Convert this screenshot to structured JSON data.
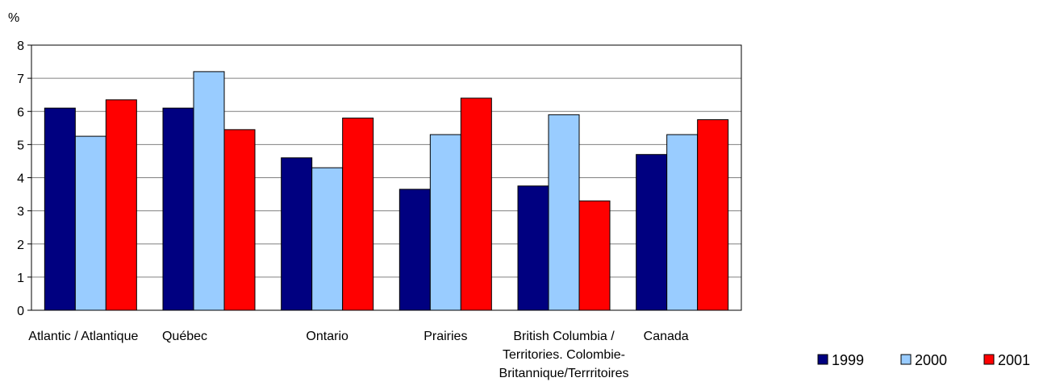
{
  "chart_data": {
    "type": "bar",
    "title": "",
    "ylabel": "%",
    "xlabel": "",
    "ylim": [
      0,
      8
    ],
    "yticks": [
      "0",
      "1",
      "2",
      "3",
      "4",
      "5",
      "6",
      "7",
      "8"
    ],
    "grid": true,
    "legend_position": "bottom-right",
    "categories": [
      [
        "Atlantic / Atlantique"
      ],
      [
        "Québec"
      ],
      [
        "Ontario"
      ],
      [
        "Prairies"
      ],
      [
        "British Columbia /",
        "Territories. Colombie-",
        "Britannique/Terrritoires"
      ],
      [
        "Canada"
      ]
    ],
    "series": [
      {
        "name": "1999",
        "color": "#000080",
        "values": [
          6.1,
          6.1,
          4.6,
          3.65,
          3.75,
          4.7
        ]
      },
      {
        "name": "2000",
        "color": "#99CCFF",
        "values": [
          5.25,
          7.2,
          4.3,
          5.3,
          5.9,
          5.3
        ]
      },
      {
        "name": "2001",
        "color": "#FF0000",
        "values": [
          6.35,
          5.45,
          5.8,
          6.4,
          3.3,
          5.75
        ]
      }
    ]
  }
}
